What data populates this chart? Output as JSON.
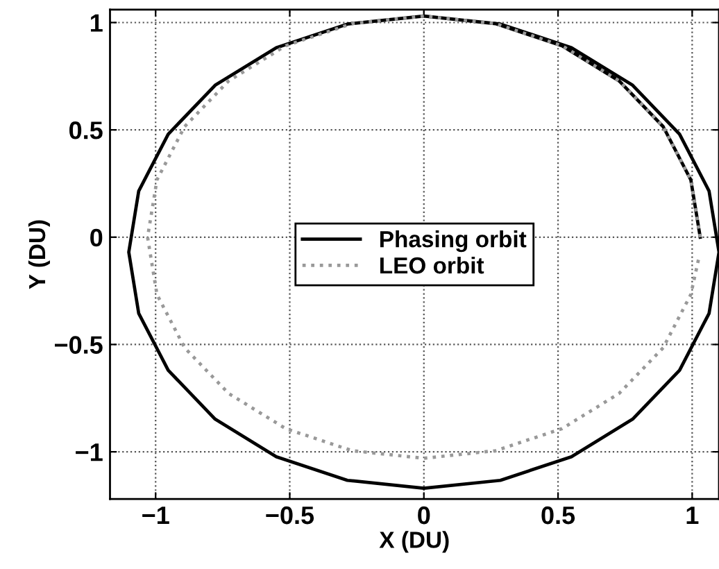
{
  "chart_data": {
    "type": "line",
    "xlabel": "X (DU)",
    "ylabel": "Y (DU)",
    "xlim": [
      -1.17,
      1.1
    ],
    "ylim": [
      -1.22,
      1.06
    ],
    "xticks": [
      {
        "value": -1,
        "label": "−1"
      },
      {
        "value": -0.5,
        "label": "−0.5"
      },
      0,
      0.5,
      1
    ],
    "yticks": [
      {
        "value": -1,
        "label": "−1"
      },
      {
        "value": -0.5,
        "label": "−0.5"
      },
      0,
      0.5,
      1
    ],
    "grid": true,
    "legend": "center",
    "marker": "none",
    "series": [
      {
        "name": "Phasing orbit",
        "color": "#000000",
        "line_style": "solid",
        "x": [
          1.03,
          0.995,
          0.892,
          0.728,
          0.515,
          0.267,
          0,
          -0.285,
          -0.55,
          -0.778,
          -0.953,
          -1.063,
          -1.1,
          -1.063,
          -0.953,
          -0.778,
          -0.55,
          -0.285,
          0,
          0.285,
          0.55,
          0.778,
          0.953,
          1.063,
          1.1,
          1.063,
          0.953,
          0.778,
          0.55,
          0.285,
          0
        ],
        "values": [
          0,
          0.267,
          0.515,
          0.728,
          0.892,
          0.995,
          1.03,
          0.993,
          0.883,
          0.708,
          0.48,
          0.215,
          -0.07,
          -0.355,
          -0.62,
          -0.848,
          -1.023,
          -1.133,
          -1.17,
          -1.133,
          -1.023,
          -0.848,
          -0.62,
          -0.355,
          -0.07,
          0.215,
          0.48,
          0.708,
          0.883,
          0.993,
          1.03
        ]
      },
      {
        "name": "LEO orbit",
        "color": "#999999",
        "line_style": "dotted",
        "x": [
          1.03,
          0.995,
          0.892,
          0.728,
          0.515,
          0.267,
          0,
          -0.267,
          -0.515,
          -0.728,
          -0.892,
          -0.995,
          -1.03,
          -0.995,
          -0.892,
          -0.728,
          -0.515,
          -0.267,
          0,
          0.267,
          0.515,
          0.728,
          0.892,
          0.995,
          1.026
        ],
        "values": [
          0,
          0.267,
          0.515,
          0.728,
          0.892,
          0.995,
          1.03,
          0.995,
          0.892,
          0.728,
          0.515,
          0.267,
          0,
          -0.267,
          -0.515,
          -0.728,
          -0.892,
          -0.995,
          -1.03,
          -0.995,
          -0.892,
          -0.728,
          -0.515,
          -0.267,
          -0.09
        ]
      }
    ]
  }
}
